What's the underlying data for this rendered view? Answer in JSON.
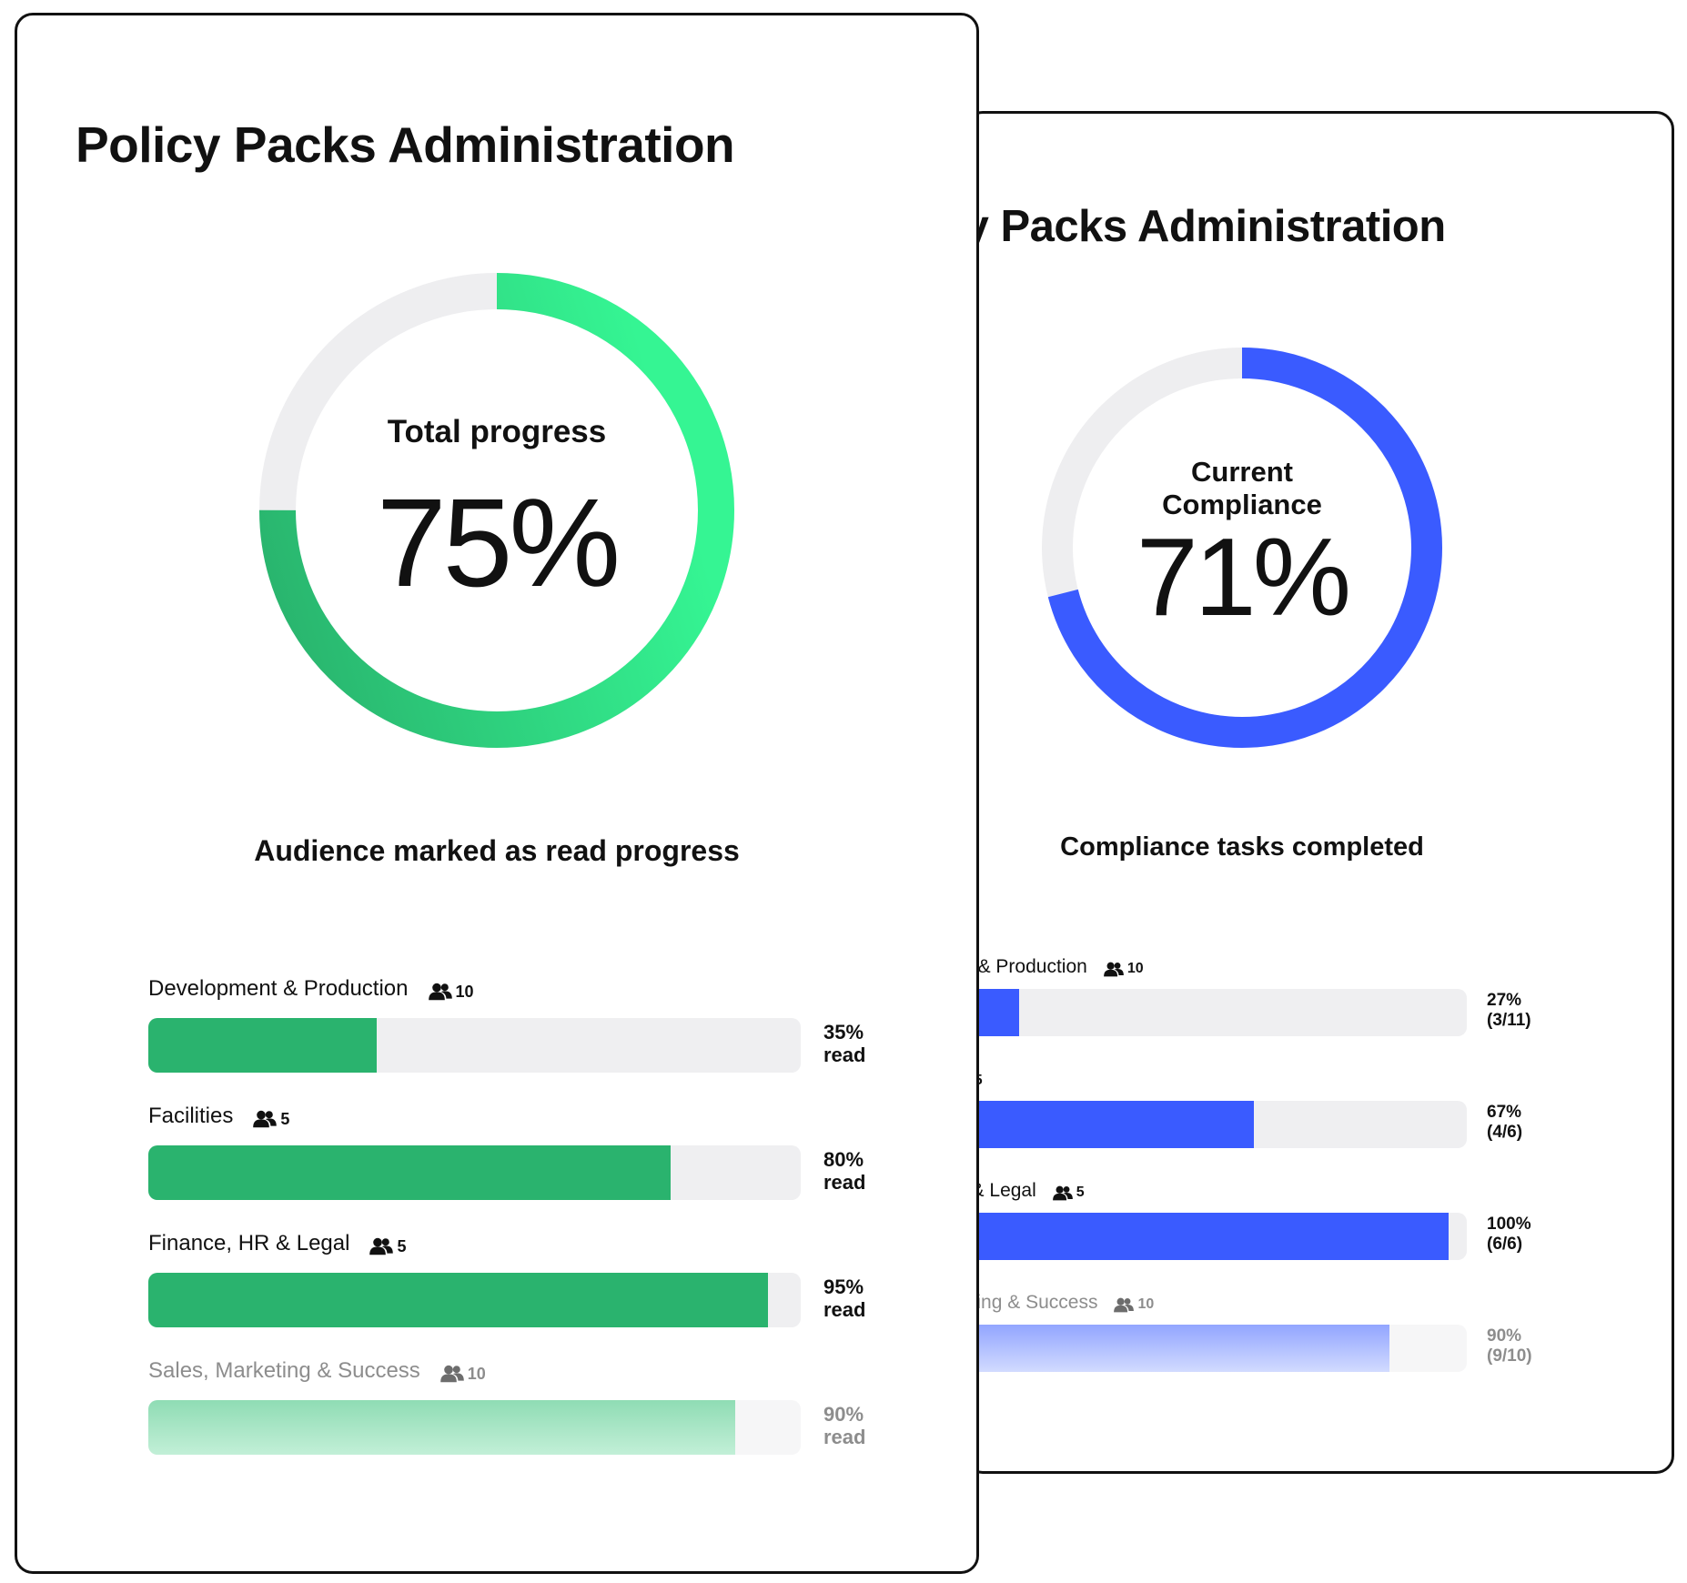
{
  "front_card": {
    "title": "Policy Packs Administration",
    "donut": {
      "label": "Total progress",
      "value_text": "75%",
      "progress": 0.75,
      "gradient_start": "#28b06b",
      "gradient_end": "#35f593",
      "track_color": "#eeeef0"
    },
    "section_heading": "Audience marked as read progress",
    "bar_color": "#2ab36e",
    "track_color": "#efeff1",
    "rows": [
      {
        "label": "Development & Production",
        "audience_icon": "people-icon",
        "audience_count": "10",
        "percent_text": "35%",
        "suffix": "read",
        "progress": 0.35,
        "dimmed": false
      },
      {
        "label": "Facilities",
        "audience_icon": "people-icon",
        "audience_count": "5",
        "percent_text": "80%",
        "suffix": "read",
        "progress": 0.8,
        "dimmed": false
      },
      {
        "label": "Finance, HR & Legal",
        "audience_icon": "people-icon",
        "audience_count": "5",
        "percent_text": "95%",
        "suffix": "read",
        "progress": 0.95,
        "dimmed": false
      },
      {
        "label": "Sales, Marketing & Success",
        "audience_icon": "people-icon",
        "audience_count": "10",
        "percent_text": "90%",
        "suffix": "read",
        "progress": 0.9,
        "dimmed": true
      }
    ]
  },
  "back_card": {
    "title": "Policy Packs Administration",
    "donut": {
      "label_line1": "Current",
      "label_line2": "Compliance",
      "value_text": "71%",
      "progress": 0.71,
      "color": "#3a5bff",
      "track_color": "#eeeef0"
    },
    "section_heading": "Compliance tasks completed",
    "bar_color": "#3a5bff",
    "track_color": "#efeff1",
    "rows": [
      {
        "label": "Development & Production",
        "audience_icon": "people-icon",
        "audience_count": "10",
        "percent_text": "27%",
        "detail": "(3/11)",
        "progress": 0.27,
        "dimmed": false
      },
      {
        "label": "Facilities",
        "audience_icon": "people-icon",
        "audience_count": "5",
        "percent_text": "67%",
        "detail": "(4/6)",
        "progress": 0.67,
        "dimmed": false
      },
      {
        "label": "Finance, HR & Legal",
        "audience_icon": "people-icon",
        "audience_count": "5",
        "percent_text": "100%",
        "detail": "(6/6)",
        "progress": 1.0,
        "dimmed": false
      },
      {
        "label": "Sales, Marketing & Success",
        "audience_icon": "people-icon",
        "audience_count": "10",
        "percent_text": "90%",
        "detail": "(9/10)",
        "progress": 0.9,
        "dimmed": true
      }
    ]
  }
}
